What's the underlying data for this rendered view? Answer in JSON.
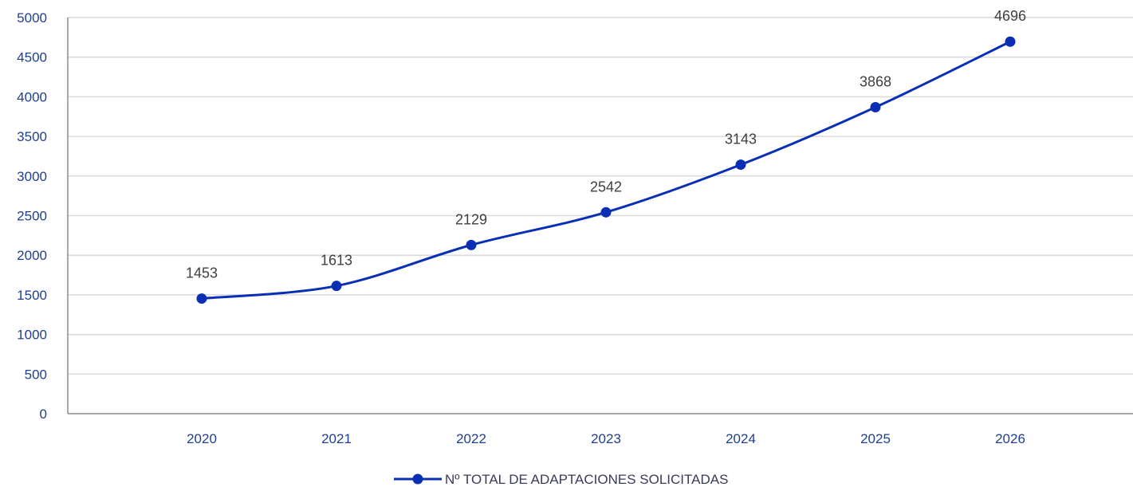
{
  "colors": {
    "series": "#0a2fb4",
    "axis_text": "#1f3f8f",
    "data_label_text": "#404040",
    "gridline": "#d9d9d9",
    "background": "#ffffff"
  },
  "chart_data": {
    "type": "line",
    "title": "",
    "xlabel": "",
    "ylabel": "",
    "categories": [
      "2020",
      "2021",
      "2022",
      "2023",
      "2024",
      "2025",
      "2026"
    ],
    "series": [
      {
        "name": "Nº TOTAL DE ADAPTACIONES SOLICITADAS",
        "values": [
          1453,
          1613,
          2129,
          2542,
          3143,
          3868,
          4696
        ],
        "smooth": true,
        "markers": true
      }
    ],
    "ylim": [
      0,
      5000
    ],
    "yticks": [
      "0",
      "500",
      "1000",
      "1500",
      "2000",
      "2500",
      "3000",
      "3500",
      "4000",
      "4500",
      "5000"
    ],
    "grid": true,
    "data_labels": true,
    "legend": "bottom"
  }
}
